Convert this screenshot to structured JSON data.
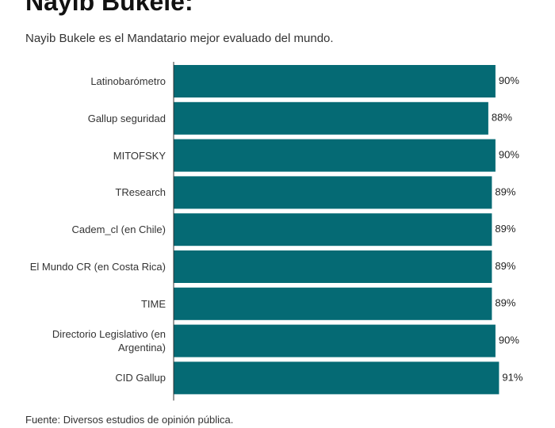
{
  "chart_data": {
    "type": "bar",
    "orientation": "horizontal",
    "title": "Nayib Bukele:",
    "subtitle": "Nayib Bukele es el Mandatario mejor evaluado del mundo.",
    "source": "Fuente: Diversos estudios de opinión pública.",
    "categories": [
      "Latinobarómetro",
      "Gallup seguridad",
      "MITOFSKY",
      "TResearch",
      "Cadem_cl (en Chile)",
      "El Mundo CR (en Costa Rica)",
      "TIME",
      "Directorio Legislativo (en Argentina)",
      "CID Gallup"
    ],
    "values": [
      90,
      88,
      90,
      89,
      89,
      89,
      89,
      90,
      91
    ],
    "value_labels": [
      "90%",
      "88%",
      "90%",
      "89%",
      "89%",
      "89%",
      "89%",
      "90%",
      "91%"
    ],
    "color": "#056a74",
    "xlim": [
      0,
      100
    ]
  }
}
